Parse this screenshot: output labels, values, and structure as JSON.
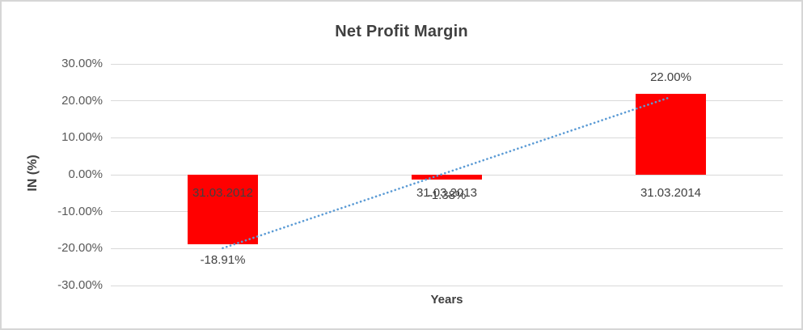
{
  "frame": {
    "background": "#FFFFFF",
    "border_color": "#D6D6D6"
  },
  "chart_data": {
    "type": "bar",
    "title": "Net Profit Margin",
    "xlabel": "Years",
    "ylabel": "IN (%)",
    "categories": [
      "31.03.2012",
      "31.03.2013",
      "31.03.2014"
    ],
    "values": [
      -18.91,
      -1.38,
      22.0
    ],
    "data_labels": [
      "-18.91%",
      "-1.38%",
      "22.00%"
    ],
    "y_ticks": [
      {
        "value": 30,
        "label": "30.00%"
      },
      {
        "value": 20,
        "label": "20.00%"
      },
      {
        "value": 10,
        "label": "10.00%"
      },
      {
        "value": 0,
        "label": "0.00%"
      },
      {
        "value": -10,
        "label": "-10.00%"
      },
      {
        "value": -20,
        "label": "-20.00%"
      },
      {
        "value": -30,
        "label": "-30.00%"
      }
    ],
    "ylim": [
      -30,
      30
    ],
    "grid": true,
    "legend": "none",
    "bar_color": "#FF0000",
    "gridline_color": "#D9D9D9",
    "tick_color": "#595959",
    "text_color": "#404040",
    "trendline": {
      "type": "linear",
      "style": "dotted",
      "color": "#5B9BD5"
    }
  }
}
